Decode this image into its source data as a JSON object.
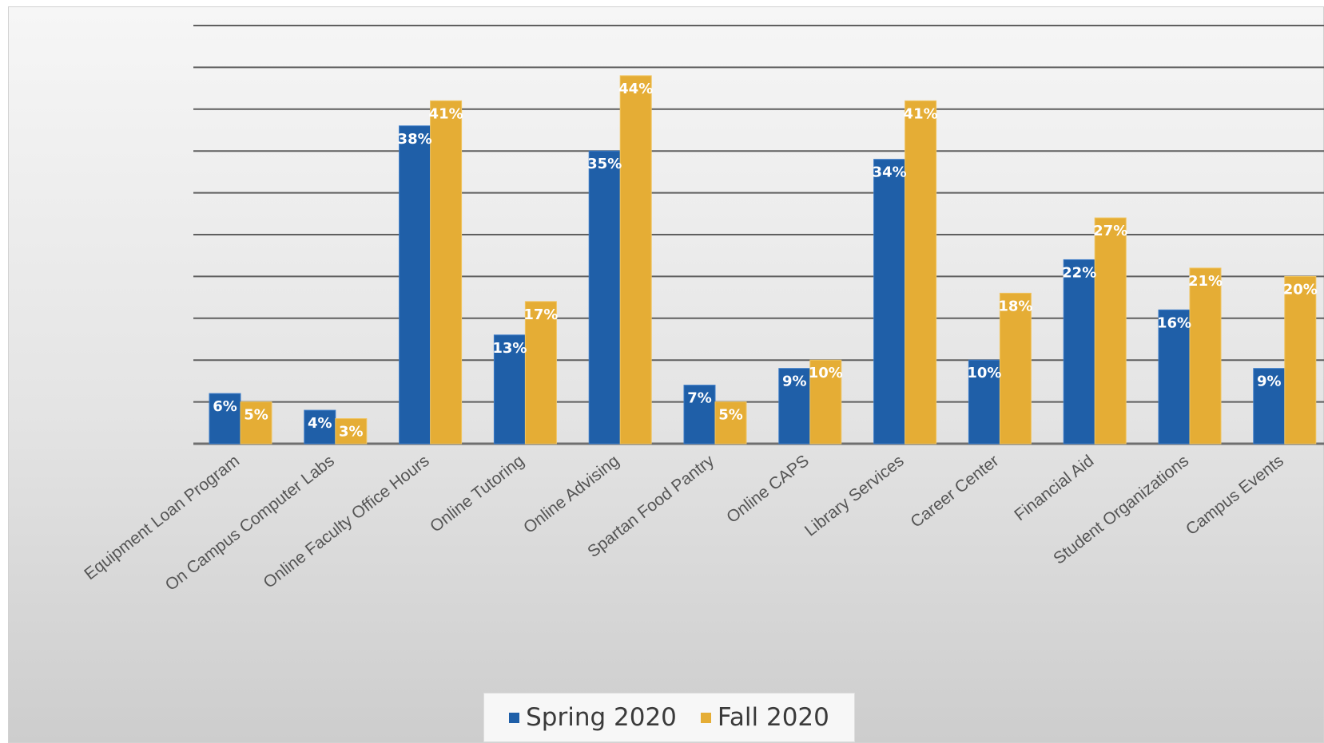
{
  "chart_data": {
    "type": "bar",
    "categories": [
      "Equipment Loan Program",
      "On Campus Computer Labs",
      "Online Faculty Office Hours",
      "Online Tutoring",
      "Online Advising",
      "Spartan Food Pantry",
      "Online CAPS",
      "Library Services",
      "Career Center",
      "Financial Aid",
      "Student Organizations",
      "Campus Events"
    ],
    "series": [
      {
        "name": "Spring 2020",
        "color": "#1f5fa8",
        "values": [
          6,
          4,
          38,
          13,
          35,
          7,
          9,
          34,
          10,
          22,
          16,
          9
        ],
        "labels": [
          "6%",
          "4%",
          "38%",
          "13%",
          "35%",
          "7%",
          "9%",
          "34%",
          "10%",
          "22%",
          "16%",
          "9%"
        ]
      },
      {
        "name": "Fall 2020",
        "color": "#e5ad35",
        "values": [
          5,
          3,
          41,
          17,
          44,
          5,
          10,
          41,
          18,
          27,
          21,
          20
        ],
        "labels": [
          "5%",
          "3%",
          "41%",
          "17%",
          "44%",
          "5%",
          "10%",
          "41%",
          "18%",
          "27%",
          "21%",
          "20%"
        ]
      }
    ],
    "ylim": [
      0,
      50
    ],
    "grid": true,
    "legend_position": "bottom"
  }
}
